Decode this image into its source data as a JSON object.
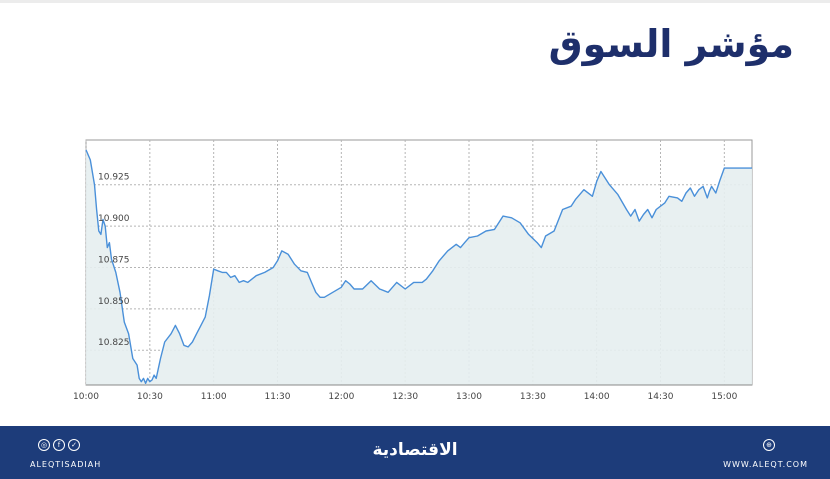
{
  "title": "مؤشر السوق",
  "footer": {
    "handle": "ALEQTISADIAH",
    "brand": "الاقتصادية",
    "site": "WWW.ALEQT.COM",
    "social_icons": [
      "instagram-icon",
      "facebook-icon",
      "twitter-icon"
    ],
    "site_icon": "globe-icon"
  },
  "colors": {
    "title": "#1e2f6b",
    "line": "#4a90d9",
    "fill": "#e6eef0",
    "grid": "#b5b5b5",
    "footer_bg": "#1d3c7a"
  },
  "chart_data": {
    "type": "area",
    "title": "",
    "xlabel": "",
    "ylabel": "",
    "x_ticks": [
      "10:00",
      "10:30",
      "11:00",
      "11:30",
      "12:00",
      "12:30",
      "13:00",
      "13:30",
      "14:00",
      "14:30",
      "15:00"
    ],
    "y_ticks": [
      "10.825",
      "10.850",
      "10.875",
      "10.900",
      "10.925"
    ],
    "xlim": [
      0,
      313
    ],
    "ylim": [
      10.804,
      10.952
    ],
    "grid": true,
    "legend": "none",
    "x_unit_note_minutes_from": "10:00",
    "series": [
      {
        "x": [
          0,
          2,
          4,
          5,
          6,
          7,
          8,
          9,
          10,
          11,
          12,
          14,
          16,
          18,
          20,
          22,
          24,
          25,
          26,
          27,
          28,
          29,
          30,
          31,
          32,
          33,
          35,
          37,
          40,
          42,
          44,
          46,
          48,
          50,
          52,
          54,
          56,
          58,
          60,
          62,
          64,
          66,
          68,
          70,
          72,
          74,
          76,
          80,
          84,
          88,
          90,
          92,
          95,
          98,
          101,
          104,
          106,
          108,
          110,
          112,
          116,
          120,
          122,
          124,
          126,
          130,
          134,
          138,
          142,
          146,
          150,
          154,
          158,
          160,
          163,
          166,
          170,
          174,
          176,
          178,
          180,
          184,
          188,
          192,
          196,
          200,
          204,
          208,
          212,
          214,
          216,
          220,
          224,
          228,
          230,
          234,
          238,
          240,
          242,
          246,
          250,
          254,
          256,
          258,
          260,
          262,
          264,
          266,
          268,
          270,
          272,
          274,
          278,
          280,
          282,
          284,
          286,
          288,
          290,
          292,
          293,
          294,
          296,
          298,
          300,
          304,
          308,
          313
        ],
        "y": [
          10.946,
          10.94,
          10.925,
          10.91,
          10.897,
          10.895,
          10.904,
          10.9,
          10.887,
          10.89,
          10.88,
          10.872,
          10.86,
          10.842,
          10.835,
          10.82,
          10.816,
          10.808,
          10.806,
          10.808,
          10.805,
          10.808,
          10.806,
          10.807,
          10.81,
          10.808,
          10.82,
          10.83,
          10.835,
          10.84,
          10.835,
          10.828,
          10.827,
          10.83,
          10.835,
          10.84,
          10.845,
          10.858,
          10.874,
          10.873,
          10.872,
          10.872,
          10.869,
          10.87,
          10.866,
          10.867,
          10.866,
          10.87,
          10.872,
          10.875,
          10.879,
          10.885,
          10.883,
          10.877,
          10.873,
          10.872,
          10.866,
          10.86,
          10.857,
          10.857,
          10.86,
          10.863,
          10.867,
          10.865,
          10.862,
          10.862,
          10.867,
          10.862,
          10.86,
          10.866,
          10.862,
          10.866,
          10.866,
          10.868,
          10.873,
          10.879,
          10.885,
          10.889,
          10.887,
          10.89,
          10.893,
          10.894,
          10.897,
          10.898,
          10.906,
          10.905,
          10.902,
          10.895,
          10.89,
          10.887,
          10.894,
          10.897,
          10.91,
          10.912,
          10.916,
          10.922,
          10.918,
          10.927,
          10.933,
          10.925,
          10.919,
          10.91,
          10.906,
          10.91,
          10.903,
          10.907,
          10.91,
          10.905,
          10.91,
          10.912,
          10.914,
          10.918,
          10.917,
          10.915,
          10.92,
          10.923,
          10.918,
          10.922,
          10.924,
          10.917,
          10.921,
          10.924,
          10.92,
          10.928,
          10.935,
          10.935,
          10.935,
          10.935
        ]
      }
    ]
  }
}
